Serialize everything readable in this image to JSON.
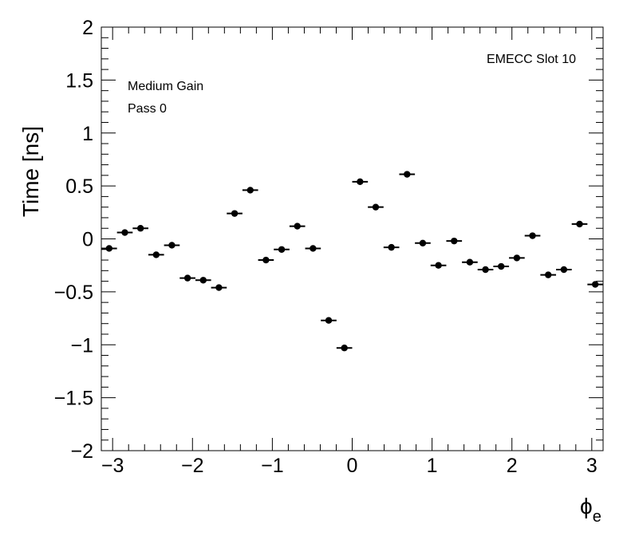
{
  "chart_data": {
    "type": "scatter",
    "ylabel": "Time [ns]",
    "xlabel_symbol": "ϕ",
    "xlabel_subscript": "e",
    "annotations": {
      "slot": "EMECC Slot 10",
      "gain": "Medium Gain",
      "pass": "Pass 0"
    },
    "xlim": [
      -3.1416,
      3.1416
    ],
    "ylim": [
      -2,
      2
    ],
    "x_ticks": [
      -3,
      -2,
      -1,
      0,
      1,
      2,
      3
    ],
    "x_tick_labels": [
      "−3",
      "−2",
      "−1",
      "0",
      "1",
      "2",
      "3"
    ],
    "y_ticks": [
      -2,
      -1.5,
      -1,
      -0.5,
      0,
      0.5,
      1,
      1.5,
      2
    ],
    "y_tick_labels": [
      "−2",
      "−1.5",
      "−1",
      "−0.5",
      "0",
      "0.5",
      "1",
      "1.5",
      "2"
    ],
    "bin_width": 0.19635,
    "x": [
      -3.0434,
      -2.8471,
      -2.6507,
      -2.4544,
      -2.258,
      -2.0617,
      -1.8653,
      -1.669,
      -1.4726,
      -1.2763,
      -1.0799,
      -0.8836,
      -0.6872,
      -0.4909,
      -0.2945,
      -0.0982,
      0.0982,
      0.2945,
      0.4909,
      0.6872,
      0.8836,
      1.0799,
      1.2763,
      1.4726,
      1.669,
      1.8653,
      2.0617,
      2.258,
      2.4544,
      2.6507,
      2.8471,
      3.0434
    ],
    "y": [
      -0.09,
      0.06,
      0.1,
      -0.15,
      -0.06,
      -0.37,
      -0.39,
      -0.46,
      0.24,
      0.46,
      -0.2,
      -0.1,
      0.12,
      -0.09,
      -0.77,
      -1.03,
      0.54,
      0.3,
      -0.08,
      0.61,
      -0.04,
      -0.25,
      -0.02,
      -0.22,
      -0.29,
      -0.26,
      -0.18,
      0.03,
      -0.34,
      -0.29,
      0.14,
      -0.43
    ]
  }
}
